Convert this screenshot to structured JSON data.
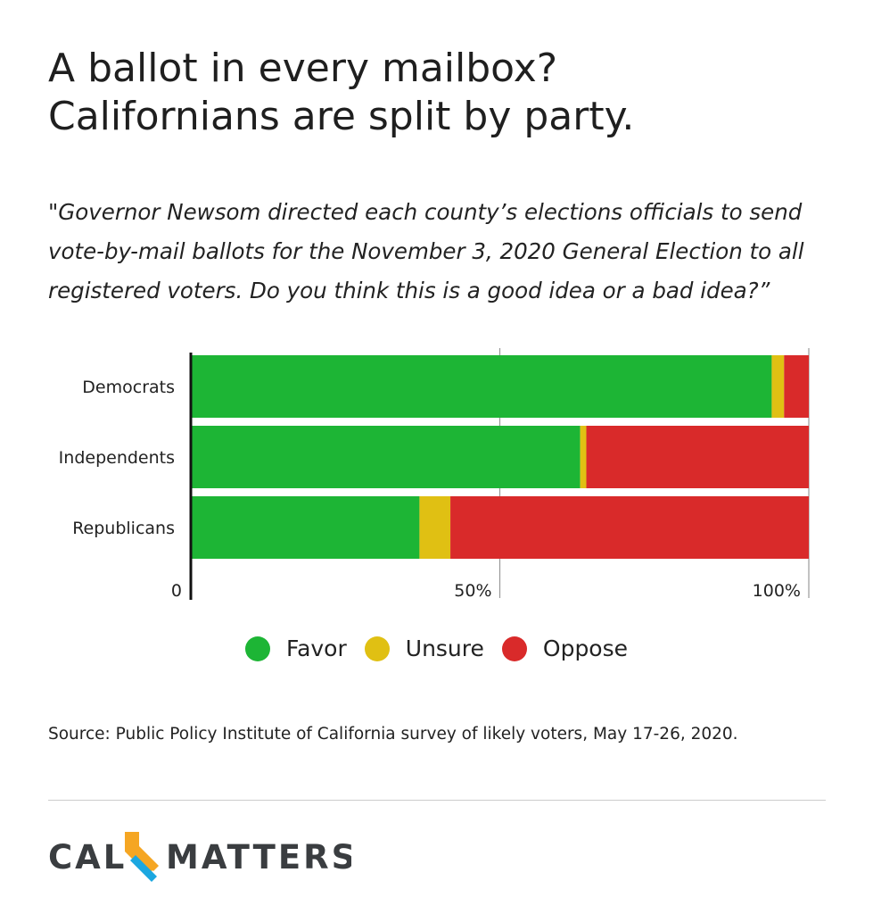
{
  "title_lines": [
    "A ballot in every mailbox?",
    "Californians are split by party."
  ],
  "question_lines": [
    "\"Governor Newsom directed each county’s elections officials to send",
    "vote-by-mail ballots for the November 3, 2020 General Election to all",
    "registered voters. Do you think this is a good idea or a bad idea?”"
  ],
  "chart_data": {
    "type": "bar",
    "orientation": "horizontal",
    "stacked": true,
    "categories": [
      "Democrats",
      "Independents",
      "Republicans"
    ],
    "series": [
      {
        "name": "Favor",
        "values": [
          94,
          63,
          37
        ],
        "color": "#1db535"
      },
      {
        "name": "Unsure",
        "values": [
          2,
          1,
          5
        ],
        "color": "#e0c013"
      },
      {
        "name": "Oppose",
        "values": [
          4,
          36,
          58
        ],
        "color": "#d92a2a"
      }
    ],
    "xlim": [
      0,
      100
    ],
    "xticks": [
      {
        "value": 0,
        "label": "0"
      },
      {
        "value": 50,
        "label": "50%"
      },
      {
        "value": 100,
        "label": "100%"
      }
    ],
    "grid": true,
    "legend_position": "bottom-center"
  },
  "source": "Source: Public Policy Institute of California survey of likely voters, May 17-26, 2020.",
  "logo": {
    "left_text": "CAL",
    "right_text": "MATTERS",
    "text_color": "#3a3d40",
    "accent_colors": [
      "#f5a623",
      "#1ca7e0"
    ]
  }
}
